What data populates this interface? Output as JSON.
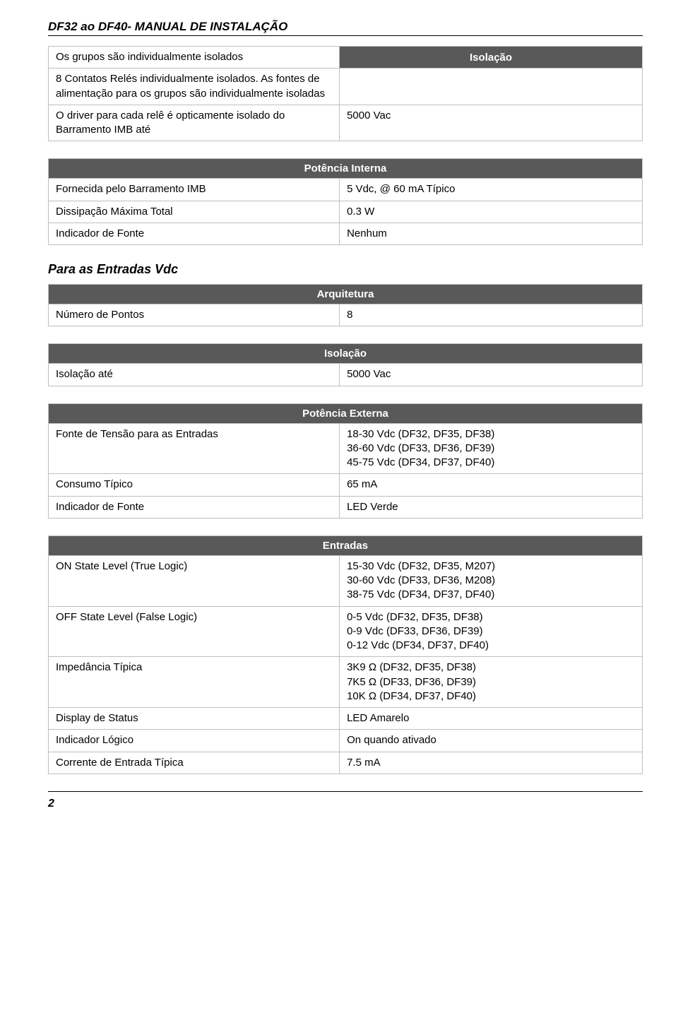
{
  "doc_title": "DF32 ao DF40- MANUAL DE INSTALAÇÃO",
  "page_number": "2",
  "subhead_vdc": "Para as Entradas Vdc",
  "colors": {
    "header_bg": "#595959",
    "header_fg": "#ffffff",
    "border": "#bfbfbf",
    "text": "#000000",
    "page_bg": "#ffffff"
  },
  "fonts": {
    "family": "Arial",
    "title_size_pt": 13,
    "body_size_pt": 11,
    "subhead_size_pt": 13
  },
  "tables": {
    "isolacao1": {
      "header": "Isolação",
      "rows": [
        {
          "left": "Os grupos são individualmente isolados",
          "right": ""
        },
        {
          "left": "8 Contatos Relés individualmente isolados. As fontes de alimentação para os grupos são individualmente isoladas",
          "right": ""
        },
        {
          "left": "O driver para cada relê é opticamente isolado do Barramento IMB até",
          "right": "5000 Vac"
        }
      ]
    },
    "potencia_interna": {
      "header": "Potência Interna",
      "rows": [
        {
          "left": "Fornecida pelo Barramento IMB",
          "right": "5 Vdc, @ 60 mA Típico"
        },
        {
          "left": "Dissipação Máxima Total",
          "right": "0.3 W"
        },
        {
          "left": "Indicador de Fonte",
          "right": "Nenhum"
        }
      ]
    },
    "arquitetura": {
      "header": "Arquitetura",
      "rows": [
        {
          "left": "Número de Pontos",
          "right": "8"
        }
      ]
    },
    "isolacao2": {
      "header": "Isolação",
      "rows": [
        {
          "left": "Isolação até",
          "right": "5000 Vac"
        }
      ]
    },
    "potencia_externa": {
      "header": "Potência Externa",
      "rows": [
        {
          "left": "Fonte de Tensão para as Entradas",
          "right": "18-30 Vdc (DF32, DF35, DF38)\n36-60 Vdc (DF33, DF36, DF39)\n45-75 Vdc (DF34, DF37, DF40)"
        },
        {
          "left": "Consumo Típico",
          "right": "65 mA"
        },
        {
          "left": "Indicador de Fonte",
          "right": " LED Verde"
        }
      ]
    },
    "entradas": {
      "header": "Entradas",
      "rows": [
        {
          "left": "ON State Level (True Logic)",
          "right": "15-30 Vdc (DF32, DF35, M207)\n30-60 Vdc (DF33, DF36, M208)\n38-75 Vdc (DF34, DF37, DF40)"
        },
        {
          "left": "OFF State Level (False Logic)",
          "right": "0-5 Vdc  (DF32, DF35, DF38)\n0-9 Vdc  (DF33, DF36, DF39)\n0-12 Vdc (DF34, DF37, DF40)"
        },
        {
          "left": "Impedância Típica",
          "right": "3K9 Ω  (DF32, DF35, DF38)\n7K5 Ω  (DF33, DF36, DF39)\n10K Ω  (DF34, DF37, DF40)"
        },
        {
          "left": "Display de Status",
          "right": " LED Amarelo"
        },
        {
          "left": "Indicador Lógico",
          "right": "On quando ativado"
        },
        {
          "left": "Corrente de Entrada Típica",
          "right": "7.5 mA"
        }
      ]
    }
  }
}
